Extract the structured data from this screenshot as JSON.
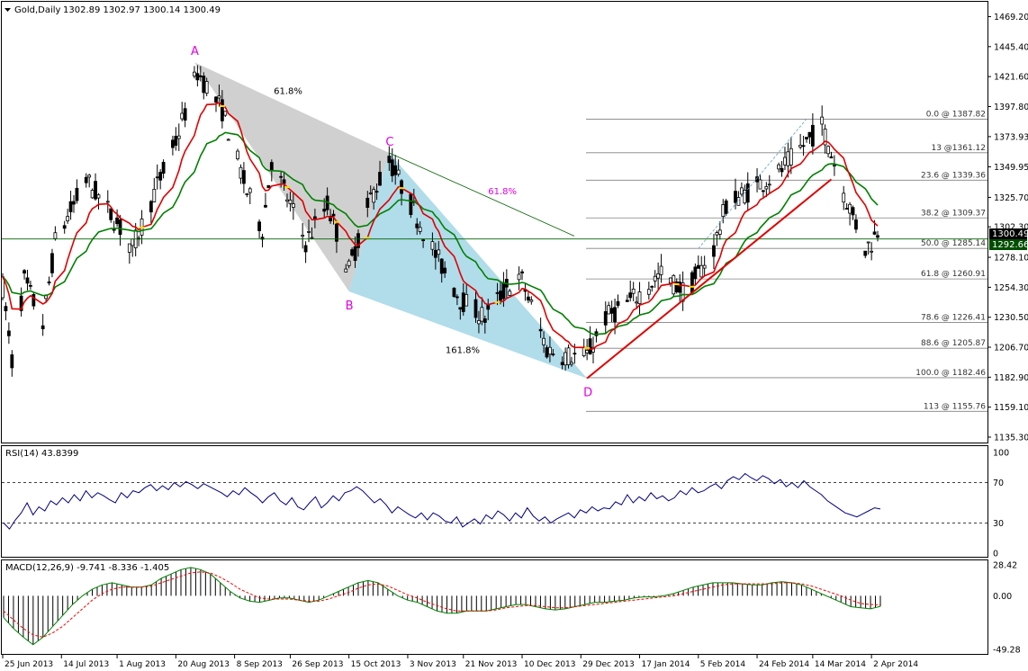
{
  "window": {
    "symbol_label": "Gold,Daily",
    "ohlc_label": "1302.89 1302.97 1300.14 1300.49"
  },
  "colors": {
    "ma_fast": "#e00000",
    "ma_slow": "#008000",
    "cross_marker": "#f0e000",
    "fib_line": "#808080",
    "trend_line": "#e00000",
    "triangle_ABC": "#c8c8c8",
    "triangle_BCD": "#a8d8e8",
    "current_price_bg": "#000000",
    "horizontal_level_bg": "#004d00",
    "pattern_label": "#e000e0",
    "rsi_line": "#000080",
    "macd_hist": "#000000",
    "macd_signal": "#ff0000",
    "macd_main": "#008000"
  },
  "chart_data": [
    {
      "type": "candlestick",
      "panel": "price",
      "price_axis_ticks": [
        1469.2,
        1445.4,
        1421.6,
        1397.8,
        1373.93,
        1349.95,
        1325.7,
        1302.3,
        1278.1,
        1254.3,
        1230.5,
        1206.7,
        1182.9,
        1159.1,
        1135.3
      ],
      "price_axis_labels": [
        "1469.20",
        "1445.40",
        "1421.60",
        "1397.80",
        "1373.93",
        "1349.95",
        "1325.70",
        "1302.30",
        "1278.10",
        "1254.30",
        "1230.50",
        "1206.70",
        "1182.90",
        "1159.10",
        "1135.30"
      ],
      "ylim": [
        1131,
        1481
      ],
      "current_price": "1300.49",
      "horizontal_level": "1292.66",
      "x_axis_labels": [
        "25 Jun 2013",
        "14 Jul 2013",
        "1 Aug 2013",
        "20 Aug 2013",
        "8 Sep 2013",
        "26 Sep 2013",
        "15 Oct 2013",
        "3 Nov 2013",
        "21 Nov 2013",
        "10 Dec 2013",
        "29 Dec 2013",
        "17 Jan 2014",
        "5 Feb 2014",
        "24 Feb 2014",
        "14 Mar 2014",
        "2 Apr 2014"
      ],
      "pattern_points": [
        {
          "label": "A",
          "date": "26 Aug 2013",
          "price": 1433
        },
        {
          "label": "B",
          "date": "15 Oct 2013",
          "price": 1251
        },
        {
          "label": "C",
          "date": "28 Oct 2013",
          "price": 1361
        },
        {
          "label": "D",
          "date": "31 Dec 2013",
          "price": 1182
        }
      ],
      "pattern_ratios": [
        {
          "text": "61.8%",
          "color": "#000000"
        },
        {
          "text": "61.8%",
          "color": "#e000e0"
        },
        {
          "text": "161.8%",
          "color": "#000000"
        }
      ],
      "fib_levels": [
        {
          "label": "0.0 @ 1387.82",
          "price": 1387.82
        },
        {
          "label": "13 @1361.12",
          "price": 1361.12
        },
        {
          "label": "23.6 @ 1339.36",
          "price": 1339.36
        },
        {
          "label": "38.2 @ 1309.37",
          "price": 1309.37
        },
        {
          "label": "50.0 @ 1285.14",
          "price": 1285.14
        },
        {
          "label": "61.8 @ 1260.91",
          "price": 1260.91
        },
        {
          "label": "78.6 @ 1226.41",
          "price": 1226.41
        },
        {
          "label": "88.6 @ 1205.87",
          "price": 1205.87
        },
        {
          "label": "100.0 @ 1182.46",
          "price": 1182.46
        },
        {
          "label": "113 @ 1155.76",
          "price": 1155.76
        }
      ],
      "moving_averages_present": [
        "red fast MA",
        "green slow MA"
      ]
    },
    {
      "type": "line",
      "panel": "rsi",
      "title": "RSI(14) 43.8399",
      "axis_labels": [
        "100",
        "70",
        "30",
        "0"
      ],
      "levels": [
        70,
        30
      ],
      "ylim": [
        0,
        100
      ],
      "values": [
        30,
        24,
        33,
        40,
        50,
        38,
        46,
        42,
        52,
        48,
        55,
        50,
        58,
        52,
        62,
        55,
        60,
        57,
        53,
        50,
        60,
        55,
        62,
        60,
        65,
        68,
        62,
        67,
        63,
        70,
        66,
        71,
        68,
        64,
        69,
        66,
        63,
        60,
        56,
        62,
        58,
        65,
        60,
        56,
        50,
        56,
        60,
        52,
        48,
        55,
        46,
        43,
        50,
        56,
        45,
        50,
        57,
        52,
        60,
        62,
        66,
        62,
        56,
        50,
        54,
        48,
        40,
        46,
        42,
        38,
        35,
        40,
        33,
        40,
        37,
        32,
        30,
        36,
        26,
        30,
        34,
        29,
        38,
        34,
        42,
        38,
        32,
        40,
        35,
        45,
        37,
        32,
        36,
        30,
        34,
        37,
        40,
        35,
        43,
        40,
        46,
        42,
        45,
        44,
        51,
        48,
        58,
        50,
        56,
        52,
        60,
        54,
        57,
        52,
        55,
        62,
        58,
        65,
        60,
        62,
        66,
        69,
        64,
        72,
        76,
        73,
        79,
        75,
        72,
        77,
        74,
        69,
        73,
        66,
        70,
        65,
        72,
        66,
        62,
        58,
        52,
        48,
        44,
        40,
        38,
        36,
        39,
        42,
        45,
        43.8
      ]
    },
    {
      "type": "bar+line",
      "panel": "macd",
      "title": "MACD(12,26,9) -9.741 -8.336 -1.405",
      "axis_labels": [
        "28.42",
        "0.00",
        "-49.28"
      ],
      "ylim": [
        -49.28,
        28.42
      ],
      "series": [
        {
          "name": "main",
          "values": [
            -20,
            -30,
            -38,
            -45,
            -38,
            -28,
            -18,
            -8,
            0,
            6,
            10,
            12,
            10,
            8,
            8,
            10,
            16,
            20,
            24,
            26,
            24,
            20,
            12,
            4,
            -2,
            -5,
            -6,
            -4,
            -2,
            -2,
            -4,
            -6,
            -4,
            0,
            4,
            8,
            12,
            14,
            12,
            6,
            0,
            -4,
            -6,
            -10,
            -14,
            -16,
            -16,
            -14,
            -14,
            -14,
            -12,
            -10,
            -8,
            -8,
            -10,
            -12,
            -13,
            -12,
            -10,
            -8,
            -6,
            -6,
            -5,
            -4,
            -2,
            -1,
            -1,
            0,
            2,
            5,
            8,
            10,
            12,
            12,
            12,
            11,
            10,
            10,
            12,
            13,
            12,
            10,
            6,
            2,
            -2,
            -6,
            -10,
            -11,
            -12,
            -9.7
          ]
        },
        {
          "name": "signal",
          "values": [
            -14,
            -22,
            -30,
            -36,
            -38,
            -34,
            -28,
            -20,
            -12,
            -4,
            2,
            6,
            8,
            8,
            8,
            9,
            12,
            15,
            18,
            21,
            22,
            21,
            17,
            12,
            6,
            2,
            -2,
            -3,
            -3,
            -3,
            -4,
            -5,
            -5,
            -3,
            0,
            3,
            7,
            10,
            11,
            9,
            5,
            1,
            -2,
            -6,
            -9,
            -12,
            -14,
            -14,
            -14,
            -14,
            -13,
            -11,
            -10,
            -9,
            -9,
            -10,
            -11,
            -11,
            -10,
            -9,
            -8,
            -7,
            -6,
            -5,
            -4,
            -3,
            -2,
            -1,
            0,
            2,
            4,
            6,
            8,
            10,
            11,
            11,
            11,
            11,
            11,
            12,
            12,
            11,
            9,
            6,
            3,
            0,
            -4,
            -7,
            -8,
            -8.3
          ]
        }
      ]
    }
  ]
}
